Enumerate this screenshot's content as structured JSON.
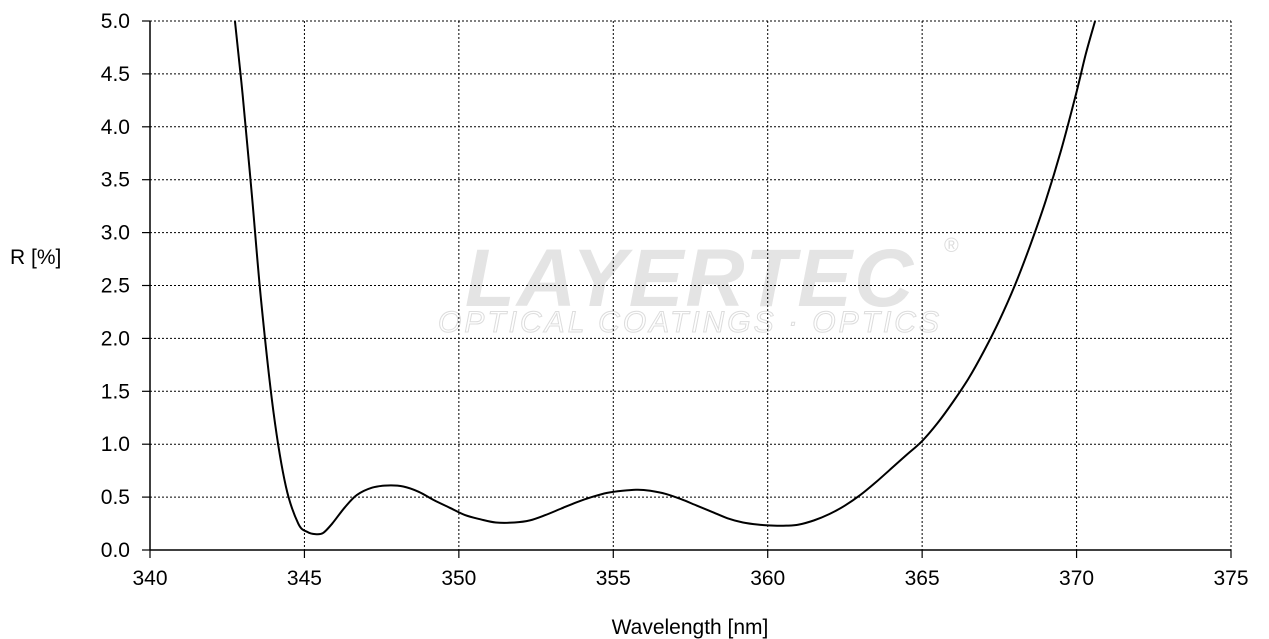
{
  "chart_data": {
    "type": "line",
    "title": "",
    "xlabel": "Wavelength [nm]",
    "ylabel": "R [%]",
    "xlim": [
      340,
      375
    ],
    "ylim": [
      0,
      5
    ],
    "x_ticks": [
      340,
      345,
      350,
      355,
      360,
      365,
      370,
      375
    ],
    "y_ticks": [
      0,
      0.5,
      1,
      1.5,
      2,
      2.5,
      3,
      3.5,
      4,
      4.5,
      5
    ],
    "grid": true,
    "legend": "none",
    "series": [
      {
        "color": "#000000",
        "x": [
          342.75,
          343.0,
          343.3,
          343.6,
          344.0,
          344.4,
          344.8,
          345.1,
          345.35,
          345.6,
          345.9,
          346.3,
          346.7,
          347.2,
          347.7,
          348.2,
          348.7,
          349.2,
          349.7,
          350.2,
          350.7,
          351.2,
          351.8,
          352.3,
          352.8,
          353.3,
          353.8,
          354.3,
          354.8,
          355.3,
          355.8,
          356.2,
          356.7,
          357.2,
          357.7,
          358.2,
          358.7,
          359.2,
          359.7,
          360.2,
          360.6,
          361.0,
          361.5,
          362.0,
          362.5,
          363.0,
          363.5,
          364.0,
          364.5,
          365.0,
          365.5,
          366.0,
          366.5,
          367.0,
          367.5,
          368.0,
          368.5,
          369.0,
          369.5,
          370.0,
          370.3,
          370.6
        ],
        "y": [
          5.0,
          4.3,
          3.35,
          2.35,
          1.3,
          0.6,
          0.25,
          0.17,
          0.15,
          0.16,
          0.25,
          0.4,
          0.52,
          0.59,
          0.61,
          0.6,
          0.55,
          0.47,
          0.4,
          0.33,
          0.29,
          0.26,
          0.26,
          0.28,
          0.33,
          0.39,
          0.45,
          0.5,
          0.54,
          0.56,
          0.57,
          0.56,
          0.53,
          0.48,
          0.42,
          0.36,
          0.3,
          0.26,
          0.24,
          0.23,
          0.23,
          0.24,
          0.28,
          0.34,
          0.42,
          0.52,
          0.64,
          0.77,
          0.9,
          1.03,
          1.2,
          1.4,
          1.62,
          1.88,
          2.17,
          2.5,
          2.88,
          3.3,
          3.78,
          4.33,
          4.69,
          5.0
        ]
      }
    ]
  },
  "watermark": {
    "brand": "LAYERTEC",
    "tagline": "OPTICAL COATINGS · OPTICS",
    "registered": "®"
  }
}
